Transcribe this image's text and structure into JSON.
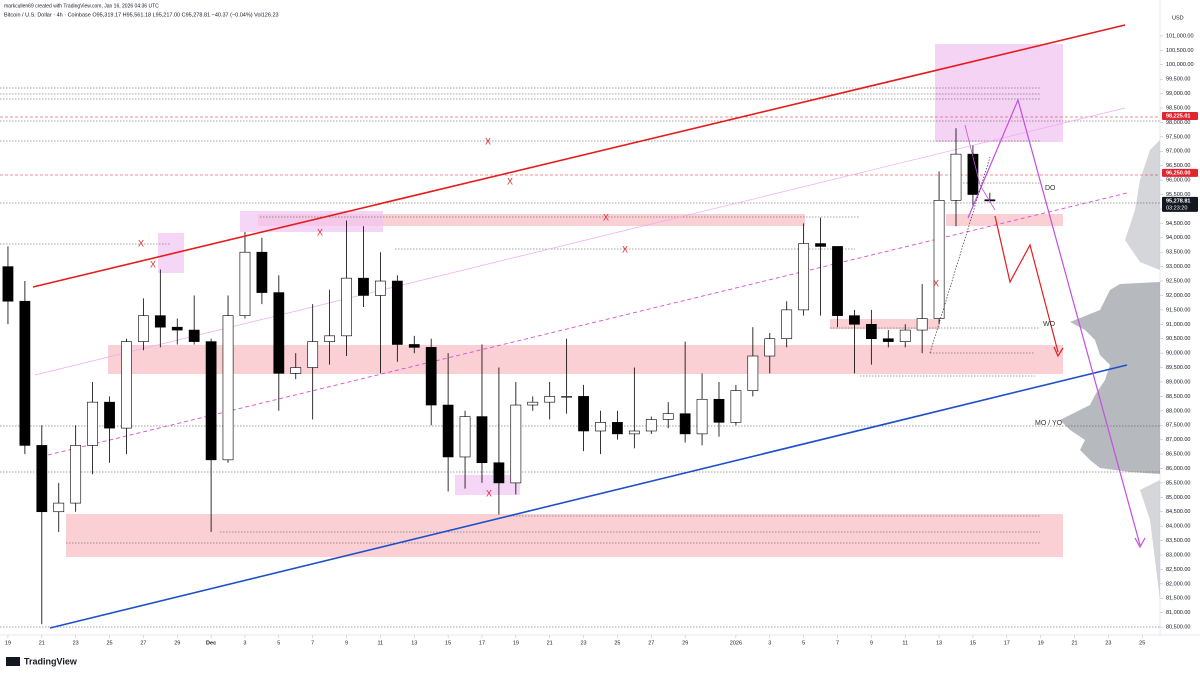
{
  "header": {
    "credit": "markcullen69 created with TradingView.com, Jan 16, 2026 04:36 UTC",
    "legend": "Bitcoin / U.S. Dollar · 4h · Coinbase  O95,319.17  H95,561.18  L95,217.00  C95,278.81  −40.37 (−0.04%)  Vol126.23",
    "currency": "USD",
    "brand": "TradingView"
  },
  "chart_data": {
    "type": "candlestick",
    "x": [
      0,
      1,
      2,
      3,
      4,
      5,
      6,
      7,
      8,
      9,
      10,
      11,
      12,
      13,
      14,
      15,
      16,
      17,
      18,
      19,
      20,
      21,
      22,
      23,
      24,
      25,
      26,
      27,
      28,
      29,
      30,
      31,
      32,
      33,
      34,
      35,
      36,
      37,
      38,
      39,
      40,
      41,
      42,
      43,
      44,
      45,
      46,
      47,
      48,
      49,
      50,
      51,
      52,
      53,
      54,
      55,
      56,
      57,
      58
    ],
    "open": [
      93000,
      91800,
      86800,
      84500,
      84800,
      86800,
      88300,
      87400,
      90400,
      91300,
      90900,
      90800,
      90400,
      86300,
      91300,
      93500,
      92100,
      89300,
      89500,
      90400,
      90600,
      92600,
      92000,
      92500,
      90300,
      90200,
      88200,
      86400,
      87800,
      86200,
      85500,
      88200,
      88300,
      88500,
      88500,
      87300,
      87600,
      87200,
      87300,
      87700,
      87900,
      87200,
      88400,
      87600,
      88700,
      89900,
      90500,
      91500,
      93800,
      93700,
      91300,
      91000,
      90500,
      90400,
      90800,
      91200,
      95300,
      96900,
      95319.17
    ],
    "high": [
      93700,
      92500,
      87500,
      85500,
      87500,
      89000,
      88500,
      90500,
      91900,
      92900,
      91200,
      92000,
      90500,
      92000,
      94200,
      94000,
      92700,
      90000,
      91700,
      92200,
      94600,
      94400,
      93500,
      92700,
      90600,
      90500,
      90000,
      88000,
      90300,
      89500,
      89000,
      88500,
      89000,
      90500,
      88900,
      88000,
      88000,
      89500,
      87800,
      88300,
      90400,
      89300,
      89000,
      88900,
      90900,
      90700,
      91800,
      94500,
      94700,
      93700,
      91500,
      91500,
      90800,
      91000,
      92400,
      96300,
      97800,
      97200,
      95561.18
    ],
    "low": [
      91000,
      86500,
      80600,
      83800,
      84500,
      85800,
      86200,
      86500,
      90100,
      90200,
      90300,
      90300,
      83800,
      86200,
      91200,
      91700,
      88000,
      89100,
      87700,
      89600,
      89900,
      91600,
      89300,
      89700,
      90000,
      87500,
      85200,
      85300,
      85500,
      84400,
      85100,
      88000,
      87700,
      87900,
      86600,
      86500,
      87000,
      86700,
      87200,
      87400,
      86900,
      86800,
      87100,
      87500,
      88500,
      89300,
      90200,
      91300,
      91300,
      90900,
      89300,
      89600,
      90200,
      90200,
      90000,
      91000,
      94400,
      95100,
      95217
    ],
    "close": [
      91800,
      86800,
      84500,
      84800,
      86800,
      88300,
      87400,
      90400,
      91300,
      90900,
      90800,
      90400,
      86300,
      91300,
      93500,
      92100,
      89300,
      89500,
      90400,
      90600,
      92600,
      92000,
      92500,
      90300,
      90200,
      88200,
      86400,
      87800,
      86200,
      85500,
      88200,
      88300,
      88500,
      88500,
      87300,
      87600,
      87200,
      87300,
      87700,
      87900,
      87200,
      88400,
      87600,
      88700,
      89900,
      90500,
      91500,
      93800,
      93700,
      91300,
      91000,
      90500,
      90400,
      90800,
      91200,
      95300,
      96900,
      95500,
      95278.81
    ],
    "up_color": "#ffffff",
    "down_color": "#000000",
    "xlim": [
      -0.47,
      68.05
    ],
    "xticks": [
      {
        "value": 0,
        "label": "19"
      },
      {
        "value": 2,
        "label": "21"
      },
      {
        "value": 4,
        "label": "23"
      },
      {
        "value": 6,
        "label": "25"
      },
      {
        "value": 8,
        "label": "27"
      },
      {
        "value": 10,
        "label": "29"
      },
      {
        "value": 12,
        "label": "Dec"
      },
      {
        "value": 14,
        "label": "3"
      },
      {
        "value": 16,
        "label": "5"
      },
      {
        "value": 18,
        "label": "7"
      },
      {
        "value": 20,
        "label": "9"
      },
      {
        "value": 22,
        "label": "11"
      },
      {
        "value": 24,
        "label": "13"
      },
      {
        "value": 26,
        "label": "15"
      },
      {
        "value": 28,
        "label": "17"
      },
      {
        "value": 30,
        "label": "19"
      },
      {
        "value": 32,
        "label": "21"
      },
      {
        "value": 34,
        "label": "23"
      },
      {
        "value": 36,
        "label": "25"
      },
      {
        "value": 38,
        "label": "27"
      },
      {
        "value": 40,
        "label": "29"
      },
      {
        "value": 43,
        "label": "2026"
      },
      {
        "value": 45,
        "label": "3"
      },
      {
        "value": 47,
        "label": "5"
      },
      {
        "value": 49,
        "label": "7"
      },
      {
        "value": 51,
        "label": "9"
      },
      {
        "value": 53,
        "label": "11"
      },
      {
        "value": 55,
        "label": "13"
      },
      {
        "value": 57,
        "label": "15"
      },
      {
        "value": 59,
        "label": "17"
      },
      {
        "value": 61,
        "label": "19"
      },
      {
        "value": 63,
        "label": "21"
      },
      {
        "value": 65,
        "label": "23"
      },
      {
        "value": 67,
        "label": "25"
      }
    ],
    "ylim": [
      80330,
      101760
    ],
    "yticks": [
      {
        "value": 80500,
        "label": "80,500.00"
      },
      {
        "value": 81000,
        "label": "81,000.00"
      },
      {
        "value": 81500,
        "label": "81,500.00"
      },
      {
        "value": 82000,
        "label": "82,000.00"
      },
      {
        "value": 82500,
        "label": "82,500.00"
      },
      {
        "value": 83000,
        "label": "83,000.00"
      },
      {
        "value": 83500,
        "label": "83,500.00"
      },
      {
        "value": 84000,
        "label": "84,000.00"
      },
      {
        "value": 84500,
        "label": "84,500.00"
      },
      {
        "value": 85000,
        "label": "85,000.00"
      },
      {
        "value": 85500,
        "label": "85,500.00"
      },
      {
        "value": 86000,
        "label": "86,000.00"
      },
      {
        "value": 86500,
        "label": "86,500.00"
      },
      {
        "value": 87000,
        "label": "87,000.00"
      },
      {
        "value": 87500,
        "label": "87,500.00"
      },
      {
        "value": 88000,
        "label": "88,000.00"
      },
      {
        "value": 88500,
        "label": "88,500.00"
      },
      {
        "value": 89000,
        "label": "89,000.00"
      },
      {
        "value": 89500,
        "label": "89,500.00"
      },
      {
        "value": 90000,
        "label": "90,000.00"
      },
      {
        "value": 90500,
        "label": "90,500.00"
      },
      {
        "value": 91000,
        "label": "91,000.00"
      },
      {
        "value": 91500,
        "label": "91,500.00"
      },
      {
        "value": 92000,
        "label": "92,000.00"
      },
      {
        "value": 92500,
        "label": "92,500.00"
      },
      {
        "value": 93000,
        "label": "93,000.00"
      },
      {
        "value": 93500,
        "label": "93,500.00"
      },
      {
        "value": 94000,
        "label": "94,000.00"
      },
      {
        "value": 94500,
        "label": "94,500.00"
      },
      {
        "value": 95000,
        "label": "95,000.00"
      },
      {
        "value": 95500,
        "label": "95,500.00"
      },
      {
        "value": 96000,
        "label": "96,000.00"
      },
      {
        "value": 96500,
        "label": "96,500.00"
      },
      {
        "value": 97000,
        "label": "97,000.00"
      },
      {
        "value": 97500,
        "label": "97,500.00"
      },
      {
        "value": 98000,
        "label": "98,000.00"
      },
      {
        "value": 98500,
        "label": "98,500.00"
      },
      {
        "value": 99000,
        "label": "99,000.00"
      },
      {
        "value": 99500,
        "label": "99,500.00"
      },
      {
        "value": 100000,
        "label": "100,000.00"
      },
      {
        "value": 100500,
        "label": "100,500.00"
      },
      {
        "value": 101000,
        "label": "101,000.00"
      }
    ],
    "price_labels": [
      {
        "value": 98225.01,
        "label": "98,225.01",
        "color": "#e0252f"
      },
      {
        "value": 96250,
        "label": "96,250.00",
        "color": "#e0252f"
      },
      {
        "value": 95278.81,
        "label": "95,278.81",
        "color": "#131722"
      }
    ],
    "countdown": "03:23:20",
    "annotations": [
      "X",
      "X",
      "X",
      "X",
      "X",
      "X",
      "X",
      "X",
      "X",
      "DO",
      "WO",
      "MO / YO"
    ]
  }
}
